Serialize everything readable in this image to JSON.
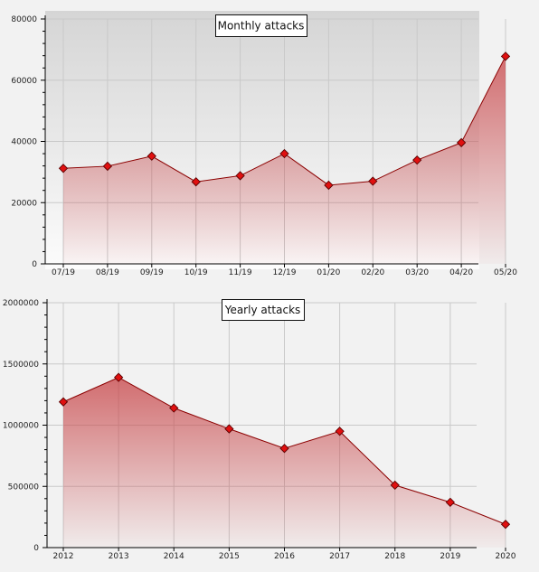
{
  "colors": {
    "line": "#8b0000",
    "marker": "#e01010",
    "fill_top": "#c8474a",
    "panel_top": "#d5d5d5",
    "panel_bottom": "#fcfcfc",
    "grid": "#c9c9c9"
  },
  "chart_data": [
    {
      "type": "area",
      "title": "Monthly attacks",
      "xlabel": "",
      "ylabel": "",
      "categories": [
        "07/19",
        "08/19",
        "09/19",
        "10/19",
        "11/19",
        "12/19",
        "01/20",
        "02/20",
        "03/20",
        "04/20",
        "05/20"
      ],
      "values": [
        31200,
        31900,
        35200,
        26800,
        28800,
        36000,
        25700,
        27000,
        33900,
        39600,
        67800
      ],
      "ylim": [
        0,
        80000
      ],
      "yticks": [
        "0",
        "20000",
        "40000",
        "60000",
        "80000"
      ],
      "grid": true,
      "markers": "diamond"
    },
    {
      "type": "area",
      "title": "Yearly attacks",
      "xlabel": "",
      "ylabel": "",
      "categories": [
        "2012",
        "2013",
        "2014",
        "2015",
        "2016",
        "2017",
        "2018",
        "2019",
        "2020"
      ],
      "values": [
        1190000,
        1390000,
        1140000,
        970000,
        810000,
        950000,
        510000,
        370000,
        190000
      ],
      "ylim": [
        0,
        2000000
      ],
      "yticks": [
        "0",
        "500000",
        "1000000",
        "1500000",
        "2000000"
      ],
      "grid": true,
      "markers": "diamond"
    }
  ]
}
